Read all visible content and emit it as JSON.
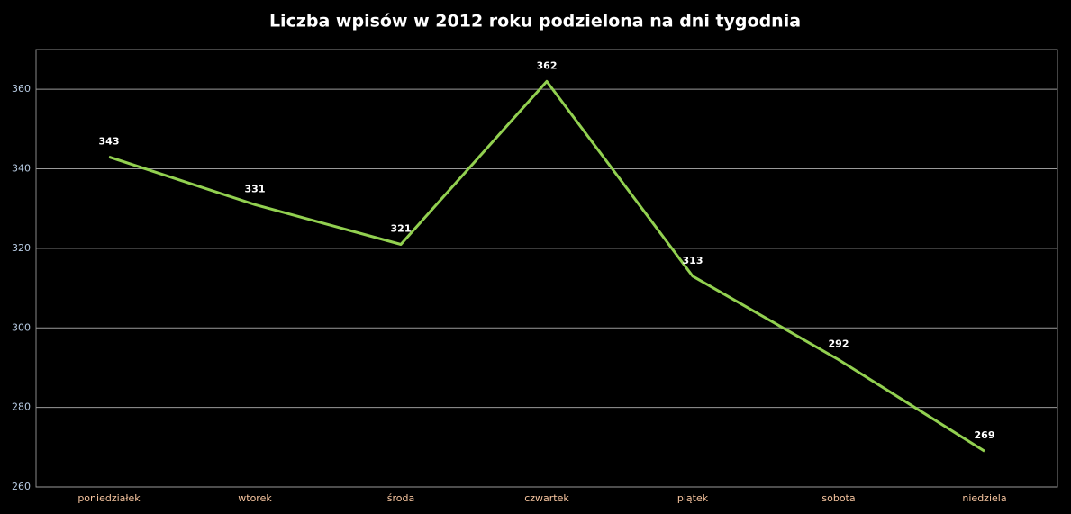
{
  "chart_data": {
    "type": "line",
    "title": "Liczba wpisów w 2012 roku podzielona na dni tygodnia",
    "categories": [
      "poniedziałek",
      "wtorek",
      "środa",
      "czwartek",
      "piątek",
      "sobota",
      "niedziela"
    ],
    "values": [
      343,
      331,
      321,
      362,
      313,
      292,
      269
    ],
    "color": "#92d050",
    "ylim": [
      260,
      370
    ],
    "yticks": [
      260,
      280,
      300,
      320,
      340,
      360
    ],
    "grid": true
  }
}
